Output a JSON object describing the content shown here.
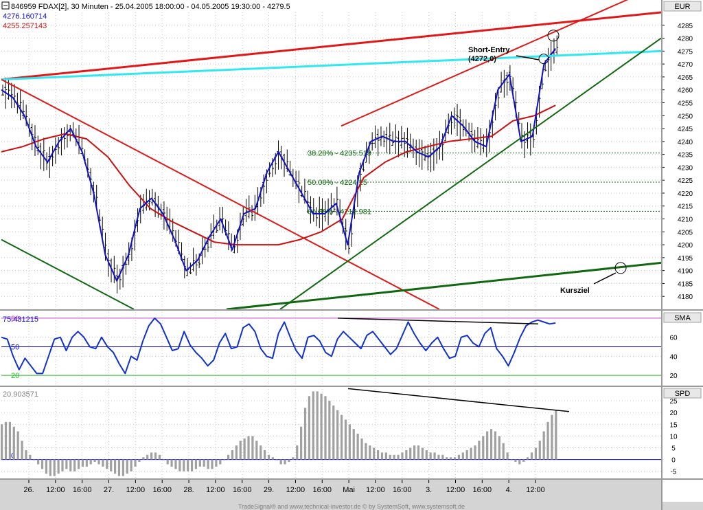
{
  "header": {
    "title_line": "846959  FDAX[2], 30 Minuten - 25.04.2005 18:00:00 - 04.05.2005 19:30:00 - 4279.5",
    "value_blue": "4276.160714",
    "value_red": "4255.257143"
  },
  "panels": {
    "price_label": "EUR",
    "rsi_label": "SMA",
    "rsi_value": "75.431215",
    "spd_label": "SPD",
    "spd_value": "20.903571"
  },
  "footer": "TradeSignal® and www.technical-investor.de © by SystemSoft, www.systemsoft.de",
  "colors": {
    "blue_ma": "#1010cc",
    "red_ma": "#cc1010",
    "channel_red": "#e01818",
    "cyan_line": "#30e8f0",
    "green_trend": "#106810",
    "rsi_line": "#1030d0",
    "bars_gray": "#a0a0a0"
  },
  "chart_data": [
    {
      "type": "line",
      "panel": "price",
      "unit": "EUR",
      "title": "FDAX[2], 30 Minuten",
      "ylim": [
        4175,
        4290
      ],
      "y_ticks": [
        4180,
        4185,
        4190,
        4195,
        4200,
        4205,
        4210,
        4215,
        4220,
        4225,
        4230,
        4235,
        4240,
        4245,
        4250,
        4255,
        4260,
        4265,
        4270,
        4275,
        4280,
        4285
      ],
      "x_ticks": [
        "26.",
        "12:00",
        "16:00",
        "27.",
        "12:00",
        "16:00",
        "28.",
        "12:00",
        "16:00",
        "29.",
        "12:00",
        "16:00",
        "Mai",
        "12:00",
        "16:00",
        "3.",
        "12:00",
        "16:00",
        "4.",
        "12:00"
      ],
      "series": [
        {
          "name": "4276.160714",
          "role": "short moving average (blue)",
          "values": [
            4260,
            4257,
            4250,
            4238,
            4232,
            4240,
            4245,
            4236,
            4220,
            4196,
            4186,
            4196,
            4214,
            4218,
            4212,
            4202,
            4190,
            4194,
            4203,
            4210,
            4198,
            4212,
            4214,
            4228,
            4236,
            4228,
            4220,
            4212,
            4212,
            4216,
            4200,
            4228,
            4240,
            4242,
            4240,
            4240,
            4236,
            4234,
            4238,
            4250,
            4246,
            4240,
            4238,
            4260,
            4266,
            4240,
            4242,
            4270,
            4276
          ]
        },
        {
          "name": "4255.257143",
          "role": "long moving average (red)",
          "values": [
            4236,
            4238,
            4241,
            4243,
            4241,
            4234,
            4223,
            4214,
            4209,
            4205,
            4201,
            4200,
            4200,
            4200,
            4202,
            4205,
            4210,
            4226,
            4232,
            4236,
            4238,
            4240,
            4241,
            4242,
            4248,
            4250,
            4254
          ]
        }
      ],
      "price_range": {
        "low": 4180,
        "high": 4281
      },
      "retracements": [
        {
          "label": "38.20% - 4235.519",
          "value": 4235.519
        },
        {
          "label": "50.00% - 4224.25",
          "value": 4224.25
        },
        {
          "label": "61.80% - 4212.981",
          "value": 4212.981
        }
      ],
      "trendlines": [
        {
          "color": "red",
          "from": [
            "25.04 18:00",
            4264
          ],
          "to": [
            "04.05 19:30",
            4290
          ]
        },
        {
          "color": "cyan",
          "from": [
            "25.04 18:00",
            4264
          ],
          "to": [
            "04.05 19:30",
            4275
          ]
        },
        {
          "color": "red",
          "from": [
            "25.04 18:00",
            4264
          ],
          "to": [
            "03.05 18:00",
            4175
          ]
        },
        {
          "color": "red",
          "from": [
            "02.05 10:00",
            4246
          ],
          "to": [
            "04.05 19:30",
            4298
          ]
        },
        {
          "color": "green",
          "from": [
            "29.04 12:00",
            4175
          ],
          "to": [
            "04.05 19:30",
            4280
          ]
        },
        {
          "color": "green",
          "from": [
            "25.04 18:00",
            4202
          ],
          "to": [
            "27.04 14:00",
            4175
          ]
        },
        {
          "color": "green",
          "from": [
            "29.04 08:00",
            4175
          ],
          "to": [
            "04.05 19:30",
            4193
          ]
        }
      ],
      "annotations": [
        {
          "text": "Short-Entry",
          "line2": "(4272,0)",
          "value": 4272.0
        },
        {
          "text": "Kursziel",
          "value": 4191
        }
      ]
    },
    {
      "type": "line",
      "panel": "oscillator",
      "title": "SMA",
      "value": 75.431215,
      "ylim": [
        10,
        85
      ],
      "y_ticks": [
        20,
        40,
        60
      ],
      "levels": [
        80,
        50,
        20
      ],
      "values": [
        60,
        58,
        40,
        26,
        38,
        30,
        22,
        22,
        40,
        58,
        60,
        46,
        60,
        66,
        60,
        50,
        48,
        60,
        50,
        44,
        32,
        22,
        40,
        36,
        56,
        72,
        80,
        74,
        60,
        46,
        48,
        66,
        52,
        44,
        38,
        30,
        36,
        54,
        64,
        48,
        50,
        70,
        74,
        66,
        48,
        40,
        38,
        64,
        76,
        60,
        46,
        38,
        60,
        62,
        56,
        44,
        40,
        58,
        66,
        60,
        54,
        48,
        62,
        66,
        58,
        50,
        42,
        48,
        62,
        76,
        64,
        54,
        46,
        54,
        60,
        48,
        38,
        40,
        60,
        62,
        54,
        50,
        64,
        70,
        48,
        40,
        30,
        44,
        60,
        72,
        76,
        78,
        76,
        74,
        75
      ],
      "divergence_line": {
        "from": 80,
        "to": 74
      }
    },
    {
      "type": "bar",
      "panel": "histogram",
      "title": "SPD",
      "value": 20.903571,
      "ylim": [
        -8,
        30
      ],
      "y_ticks": [
        -5,
        0,
        5,
        10,
        15,
        20,
        25
      ],
      "values": [
        15,
        16,
        16,
        14,
        12,
        8,
        4,
        2,
        0,
        -2,
        -4,
        -6,
        -7,
        -7,
        -6,
        -5,
        -4,
        -5,
        -5,
        -4,
        -3,
        -3,
        -2,
        -1,
        -2,
        -3,
        -4,
        -5,
        -6,
        -7,
        -7,
        -6,
        -5,
        -3,
        -1,
        1,
        2,
        3,
        3,
        2,
        0,
        -2,
        -3,
        -4,
        -5,
        -5,
        -5,
        -5,
        -4,
        -3,
        -3,
        -4,
        -4,
        -3,
        -2,
        0,
        2,
        4,
        6,
        8,
        9,
        10,
        10,
        8,
        6,
        4,
        2,
        1,
        0,
        -2,
        -2,
        -1,
        1,
        6,
        14,
        22,
        27,
        29,
        29,
        28,
        27,
        25,
        23,
        21,
        19,
        17,
        15,
        13,
        11,
        9,
        7,
        6,
        5,
        4,
        3,
        3,
        2,
        2,
        2,
        3,
        4,
        5,
        6,
        6,
        5,
        4,
        3,
        3,
        2,
        2,
        1,
        1,
        1,
        2,
        3,
        4,
        5,
        6,
        8,
        10,
        12,
        13,
        12,
        10,
        7,
        3,
        0,
        -1,
        -2,
        -1,
        1,
        3,
        5,
        8,
        12,
        16,
        19,
        21
      ],
      "divergence_line": {
        "from": 29,
        "to": 21
      }
    }
  ]
}
